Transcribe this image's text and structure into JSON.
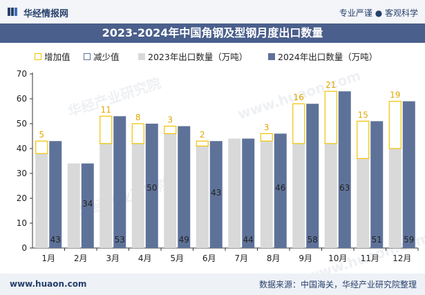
{
  "header": {
    "brand": "华经情报网",
    "slogan": "专业严谨 ● 客观科学"
  },
  "footer": {
    "site": "www.huaon.com",
    "source": "数据来源：中国海关，华经产业研究院整理"
  },
  "watermarks": [
    "华经产业研究院",
    "www.huaon.com",
    "华经产业研究院",
    "www.huaon.com"
  ],
  "chart_data": {
    "type": "bar",
    "title": "2023-2024年中国角钢及型钢月度出口数量",
    "categories": [
      "1月",
      "2月",
      "3月",
      "4月",
      "5月",
      "6月",
      "7月",
      "8月",
      "9月",
      "10月",
      "11月",
      "12月"
    ],
    "series": [
      {
        "name": "2023年出口数量（万吨）",
        "values": [
          38,
          34,
          42,
          42,
          46,
          41,
          44,
          43,
          42,
          42,
          36,
          40
        ],
        "color": "#d9d9d9"
      },
      {
        "name": "2024年出口数量（万吨）",
        "values": [
          43,
          34,
          53,
          50,
          49,
          43,
          44,
          46,
          58,
          63,
          51,
          59
        ],
        "color": "#5e7299"
      }
    ],
    "increase": {
      "name": "增加值",
      "values": [
        5,
        null,
        11,
        8,
        3,
        2,
        null,
        3,
        16,
        21,
        15,
        19
      ],
      "color": "#f2c200"
    },
    "decrease": {
      "name": "减少值",
      "values": [
        null,
        null,
        null,
        null,
        null,
        null,
        null,
        null,
        null,
        null,
        null,
        null
      ],
      "color": "#5e7299"
    },
    "bar_labels": [
      "43",
      "34",
      "53",
      "50",
      "49",
      "43",
      "44",
      "46",
      "58",
      "63",
      "51",
      "59"
    ],
    "increase_labels": [
      "5",
      "",
      "11",
      "8",
      "3",
      "2",
      "",
      "3",
      "16",
      "21",
      "15",
      "19"
    ],
    "ylim": [
      0,
      70
    ],
    "yticks": [
      0,
      10,
      20,
      30,
      40,
      50,
      60,
      70
    ],
    "xlabel": "",
    "ylabel": "",
    "grid": false,
    "legend_position": "top"
  }
}
